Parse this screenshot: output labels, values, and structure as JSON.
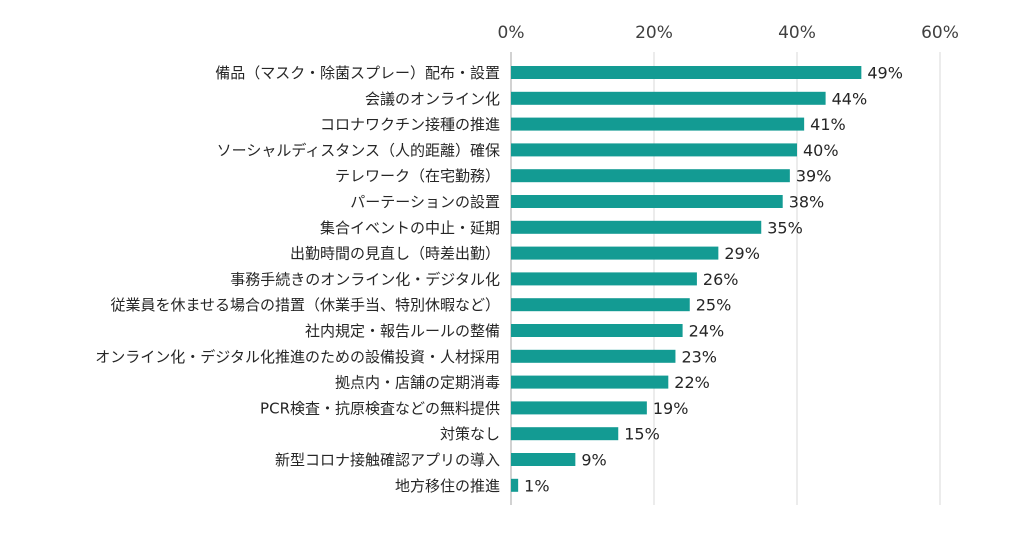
{
  "chart_data": {
    "type": "bar",
    "orientation": "horizontal",
    "categories": [
      "備品（マスク・除菌スプレー）配布・設置",
      "会議のオンライン化",
      "コロナワクチン接種の推進",
      "ソーシャルディスタンス（人的距離）確保",
      "テレワーク（在宅勤務）",
      "パーテーションの設置",
      "集合イベントの中止・延期",
      "出勤時間の見直し（時差出勤）",
      "事務手続きのオンライン化・デジタル化",
      "従業員を休ませる場合の措置（休業手当、特別休暇など）",
      "社内規定・報告ルールの整備",
      "オンライン化・デジタル化推進のための設備投資・人材採用",
      "拠点内・店舗の定期消毒",
      "PCR検査・抗原検査などの無料提供",
      "対策なし",
      "新型コロナ接触確認アプリの導入",
      "地方移住の推進"
    ],
    "values": [
      49,
      44,
      41,
      40,
      39,
      38,
      35,
      29,
      26,
      25,
      24,
      23,
      22,
      19,
      15,
      9,
      1
    ],
    "value_labels": [
      "49%",
      "44%",
      "41%",
      "40%",
      "39%",
      "38%",
      "35%",
      "29%",
      "26%",
      "25%",
      "24%",
      "23%",
      "22%",
      "19%",
      "15%",
      "9%",
      "1%"
    ],
    "xlim": [
      0,
      60
    ],
    "ticks": [
      0,
      20,
      40,
      60
    ],
    "tick_labels": [
      "0%",
      "20%",
      "40%",
      "60%"
    ],
    "tick_position": "top",
    "grid": true,
    "bar_color": "#139b93"
  }
}
